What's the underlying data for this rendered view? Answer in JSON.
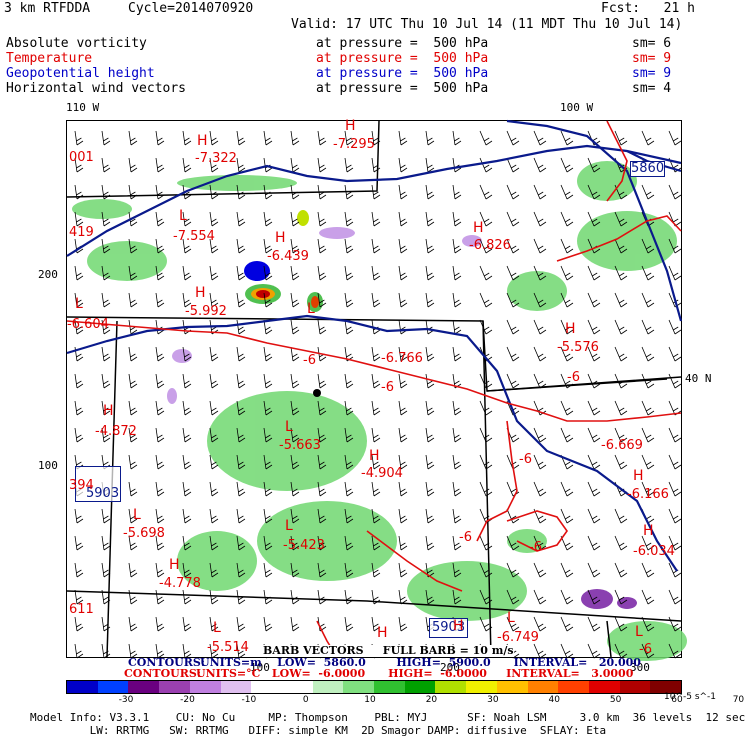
{
  "header": {
    "model": "3 km RTFDDA",
    "cycle": "Cycle=2014070920",
    "fcst": "Fcst:   21 h",
    "valid": "Valid: 17 UTC Thu 10 Jul 14 (11 MDT Thu 10 Jul 14)"
  },
  "fields": [
    {
      "name": "Absolute vorticity",
      "level": "at pressure =  500 hPa",
      "sm": "sm= 6",
      "color": "#000000"
    },
    {
      "name": "Temperature",
      "level": "at pressure =  500 hPa",
      "sm": "sm= 9",
      "color": "#e00000"
    },
    {
      "name": "Geopotential height",
      "level": "at pressure =  500 hPa",
      "sm": "sm= 9",
      "color": "#0000c8"
    },
    {
      "name": "Horizontal wind vectors",
      "level": "at pressure =  500 hPa",
      "sm": "sm= 4",
      "color": "#000000"
    }
  ],
  "map": {
    "lon_labels": [
      "110 W",
      "100 W"
    ],
    "lat_label": "40 N",
    "grid_labels": [
      "200",
      "100",
      "100",
      "200",
      "300"
    ],
    "height_labels": [
      "5860",
      "5903",
      "5903"
    ],
    "temp_labels": [
      "-7.322",
      "-7.295",
      "-7.554",
      "-6.439",
      "-6.826",
      "-5.992",
      "-6.604",
      "-5.576",
      "-6.766",
      "-6",
      "-6",
      "-6.669",
      "-4.872",
      "-5.663",
      "-4.904",
      "-6",
      "-6.166",
      "-5.698",
      "-5.423",
      "-6",
      "-6",
      "-6.034",
      "-4.778",
      "-5.514",
      "-6.749",
      "-6",
      "-6"
    ],
    "hl_letters": [
      "H",
      "H",
      "L",
      "H",
      "H",
      "L",
      "H",
      "L",
      "H",
      "L",
      "H",
      "H",
      "H",
      "L",
      "L",
      "H",
      "H",
      "H",
      "H",
      "L",
      "L",
      "L"
    ],
    "edge_numbers": [
      "001",
      "419",
      "394",
      "611"
    ],
    "colors": {
      "height": "#0a1a8c",
      "temperature": "#e01010",
      "vorticity_pos": "#60d060",
      "vorticity_neg": "#c080e0"
    }
  },
  "footer": {
    "barb_note": "BARB VECTORS     FULL BARB = 10 m/s",
    "contours1_label": "CONTOURS:",
    "contours1": "UNITS=m    LOW=  5860.0        HIGH=  5900.0      INTERVAL=   20.000",
    "contours2_label": "CONTOURS:",
    "contours2": "UNITS=°C   LOW=  -6.0000      HIGH=  -6.0000     INTERVAL=   3.0000",
    "colorbar_ticks": [
      "-30",
      "-20",
      "-10",
      "0",
      "10",
      "20",
      "30",
      "40",
      "50",
      "60",
      "70"
    ],
    "colorbar_unit": "10^-5 s^-1",
    "colorbar_colors": [
      "#0000c8",
      "#0040ff",
      "#6a0080",
      "#9a40b0",
      "#c080e0",
      "#e0c0f0",
      "#ffffff",
      "#ffffff",
      "#c0f0c0",
      "#80e080",
      "#30c030",
      "#00a000",
      "#b0e000",
      "#f0f000",
      "#ffc000",
      "#ff8000",
      "#ff4000",
      "#e00000",
      "#b00000",
      "#800000"
    ],
    "model_info1": "Model Info: V3.3.1    CU: No Cu     MP: Thompson    PBL: MYJ      SF: Noah LSM     3.0 km  36 levels  12 sec",
    "model_info2": "         LW: RRTMG   SW: RRTMG   DIFF: simple KM  2D Smagor DAMP: diffusive  SFLAY: Eta"
  }
}
